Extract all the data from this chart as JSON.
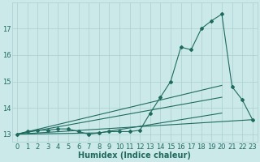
{
  "bg_color": "#cce9ea",
  "line_color": "#1e6b5e",
  "grid_color": "#aacfcf",
  "xlabel": "Humidex (Indice chaleur)",
  "xlabel_fontsize": 7,
  "tick_fontsize": 6,
  "ylim": [
    12.7,
    18.0
  ],
  "xlim": [
    -0.5,
    23.5
  ],
  "yticks": [
    13,
    14,
    15,
    16,
    17
  ],
  "xticks": [
    0,
    1,
    2,
    3,
    4,
    5,
    6,
    7,
    8,
    9,
    10,
    11,
    12,
    13,
    14,
    15,
    16,
    17,
    18,
    19,
    20,
    21,
    22,
    23
  ],
  "line1_x": [
    0,
    1,
    2,
    3,
    4,
    5,
    6,
    7,
    8,
    9,
    10,
    11,
    12,
    13,
    14,
    15,
    16,
    17,
    18,
    19,
    20,
    21,
    22,
    23
  ],
  "line1_y": [
    13.0,
    13.1,
    13.15,
    13.15,
    13.2,
    13.2,
    13.1,
    13.0,
    13.05,
    13.1,
    13.1,
    13.1,
    13.15,
    13.8,
    14.4,
    15.0,
    16.3,
    16.2,
    17.0,
    17.3,
    17.55,
    14.8,
    14.3,
    13.55
  ],
  "line2_x": [
    0,
    23
  ],
  "line2_y": [
    13.0,
    13.55
  ],
  "line3_x": [
    0,
    20
  ],
  "line3_y": [
    13.0,
    14.85
  ],
  "line4_x": [
    0,
    20
  ],
  "line4_y": [
    13.0,
    14.4
  ],
  "line5_x": [
    0,
    8,
    20
  ],
  "line5_y": [
    13.0,
    13.05,
    13.8
  ]
}
